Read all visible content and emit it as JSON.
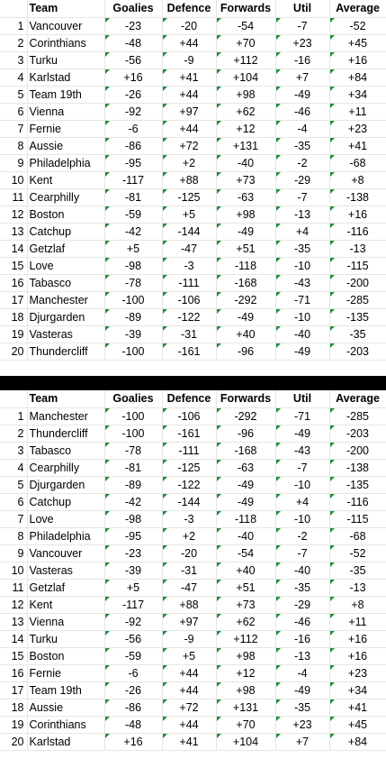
{
  "headers": [
    "",
    "Team",
    "Goalies",
    "Defence",
    "Forwards",
    "Util",
    "Average"
  ],
  "table_top": [
    {
      "rank": "1",
      "team": "Vancouver",
      "goalies": "-23",
      "defence": "-20",
      "forwards": "-54",
      "util": "-7",
      "average": "-52"
    },
    {
      "rank": "2",
      "team": "Corinthians",
      "goalies": "-48",
      "defence": "+44",
      "forwards": "+70",
      "util": "+23",
      "average": "+45"
    },
    {
      "rank": "3",
      "team": "Turku",
      "goalies": "-56",
      "defence": "-9",
      "forwards": "+112",
      "util": "-16",
      "average": "+16"
    },
    {
      "rank": "4",
      "team": "Karlstad",
      "goalies": "+16",
      "defence": "+41",
      "forwards": "+104",
      "util": "+7",
      "average": "+84"
    },
    {
      "rank": "5",
      "team": "Team 19th",
      "goalies": "-26",
      "defence": "+44",
      "forwards": "+98",
      "util": "-49",
      "average": "+34"
    },
    {
      "rank": "6",
      "team": "Vienna",
      "goalies": "-92",
      "defence": "+97",
      "forwards": "+62",
      "util": "-46",
      "average": "+11"
    },
    {
      "rank": "7",
      "team": "Fernie",
      "goalies": "-6",
      "defence": "+44",
      "forwards": "+12",
      "util": "-4",
      "average": "+23"
    },
    {
      "rank": "8",
      "team": "Aussie",
      "goalies": "-86",
      "defence": "+72",
      "forwards": "+131",
      "util": "-35",
      "average": "+41"
    },
    {
      "rank": "9",
      "team": "Philadelphia",
      "goalies": "-95",
      "defence": "+2",
      "forwards": "-40",
      "util": "-2",
      "average": "-68"
    },
    {
      "rank": "10",
      "team": "Kent",
      "goalies": "-117",
      "defence": "+88",
      "forwards": "+73",
      "util": "-29",
      "average": "+8"
    },
    {
      "rank": "11",
      "team": "Cearphilly",
      "goalies": "-81",
      "defence": "-125",
      "forwards": "-63",
      "util": "-7",
      "average": "-138"
    },
    {
      "rank": "12",
      "team": "Boston",
      "goalies": "-59",
      "defence": "+5",
      "forwards": "+98",
      "util": "-13",
      "average": "+16"
    },
    {
      "rank": "13",
      "team": "Catchup",
      "goalies": "-42",
      "defence": "-144",
      "forwards": "-49",
      "util": "+4",
      "average": "-116"
    },
    {
      "rank": "14",
      "team": "Getzlaf",
      "goalies": "+5",
      "defence": "-47",
      "forwards": "+51",
      "util": "-35",
      "average": "-13"
    },
    {
      "rank": "15",
      "team": "Love",
      "goalies": "-98",
      "defence": "-3",
      "forwards": "-118",
      "util": "-10",
      "average": "-115"
    },
    {
      "rank": "16",
      "team": "Tabasco",
      "goalies": "-78",
      "defence": "-111",
      "forwards": "-168",
      "util": "-43",
      "average": "-200"
    },
    {
      "rank": "17",
      "team": "Manchester",
      "goalies": "-100",
      "defence": "-106",
      "forwards": "-292",
      "util": "-71",
      "average": "-285"
    },
    {
      "rank": "18",
      "team": "Djurgarden",
      "goalies": "-89",
      "defence": "-122",
      "forwards": "-49",
      "util": "-10",
      "average": "-135"
    },
    {
      "rank": "19",
      "team": "Vasteras",
      "goalies": "-39",
      "defence": "-31",
      "forwards": "+40",
      "util": "-40",
      "average": "-35"
    },
    {
      "rank": "20",
      "team": "Thundercliff",
      "goalies": "-100",
      "defence": "-161",
      "forwards": "-96",
      "util": "-49",
      "average": "-203"
    }
  ],
  "table_bottom": [
    {
      "rank": "1",
      "team": "Manchester",
      "goalies": "-100",
      "defence": "-106",
      "forwards": "-292",
      "util": "-71",
      "average": "-285"
    },
    {
      "rank": "2",
      "team": "Thundercliff",
      "goalies": "-100",
      "defence": "-161",
      "forwards": "-96",
      "util": "-49",
      "average": "-203"
    },
    {
      "rank": "3",
      "team": "Tabasco",
      "goalies": "-78",
      "defence": "-111",
      "forwards": "-168",
      "util": "-43",
      "average": "-200"
    },
    {
      "rank": "4",
      "team": "Cearphilly",
      "goalies": "-81",
      "defence": "-125",
      "forwards": "-63",
      "util": "-7",
      "average": "-138"
    },
    {
      "rank": "5",
      "team": "Djurgarden",
      "goalies": "-89",
      "defence": "-122",
      "forwards": "-49",
      "util": "-10",
      "average": "-135"
    },
    {
      "rank": "6",
      "team": "Catchup",
      "goalies": "-42",
      "defence": "-144",
      "forwards": "-49",
      "util": "+4",
      "average": "-116"
    },
    {
      "rank": "7",
      "team": "Love",
      "goalies": "-98",
      "defence": "-3",
      "forwards": "-118",
      "util": "-10",
      "average": "-115"
    },
    {
      "rank": "8",
      "team": "Philadelphia",
      "goalies": "-95",
      "defence": "+2",
      "forwards": "-40",
      "util": "-2",
      "average": "-68"
    },
    {
      "rank": "9",
      "team": "Vancouver",
      "goalies": "-23",
      "defence": "-20",
      "forwards": "-54",
      "util": "-7",
      "average": "-52"
    },
    {
      "rank": "10",
      "team": "Vasteras",
      "goalies": "-39",
      "defence": "-31",
      "forwards": "+40",
      "util": "-40",
      "average": "-35"
    },
    {
      "rank": "11",
      "team": "Getzlaf",
      "goalies": "+5",
      "defence": "-47",
      "forwards": "+51",
      "util": "-35",
      "average": "-13"
    },
    {
      "rank": "12",
      "team": "Kent",
      "goalies": "-117",
      "defence": "+88",
      "forwards": "+73",
      "util": "-29",
      "average": "+8"
    },
    {
      "rank": "13",
      "team": "Vienna",
      "goalies": "-92",
      "defence": "+97",
      "forwards": "+62",
      "util": "-46",
      "average": "+11"
    },
    {
      "rank": "14",
      "team": "Turku",
      "goalies": "-56",
      "defence": "-9",
      "forwards": "+112",
      "util": "-16",
      "average": "+16"
    },
    {
      "rank": "15",
      "team": "Boston",
      "goalies": "-59",
      "defence": "+5",
      "forwards": "+98",
      "util": "-13",
      "average": "+16"
    },
    {
      "rank": "16",
      "team": "Fernie",
      "goalies": "-6",
      "defence": "+44",
      "forwards": "+12",
      "util": "-4",
      "average": "+23"
    },
    {
      "rank": "17",
      "team": "Team 19th",
      "goalies": "-26",
      "defence": "+44",
      "forwards": "+98",
      "util": "-49",
      "average": "+34"
    },
    {
      "rank": "18",
      "team": "Aussie",
      "goalies": "-86",
      "defence": "+72",
      "forwards": "+131",
      "util": "-35",
      "average": "+41"
    },
    {
      "rank": "19",
      "team": "Corinthians",
      "goalies": "-48",
      "defence": "+44",
      "forwards": "+70",
      "util": "+23",
      "average": "+45"
    },
    {
      "rank": "20",
      "team": "Karlstad",
      "goalies": "+16",
      "defence": "+41",
      "forwards": "+104",
      "util": "+7",
      "average": "+84"
    }
  ],
  "colors": {
    "flag": "#1e8f3a",
    "separator": "#000000",
    "grid": "#e6e6e6"
  }
}
